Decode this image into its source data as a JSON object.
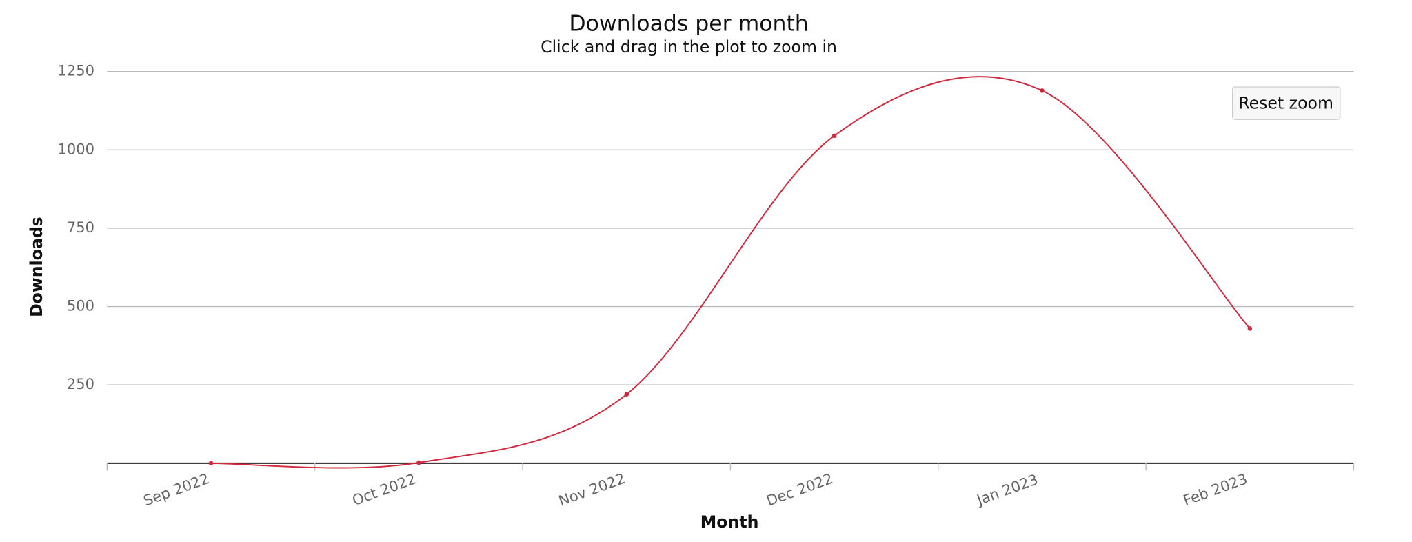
{
  "chart_data": {
    "type": "line",
    "title": "Downloads per month",
    "subtitle": "Click and drag in the plot to zoom in",
    "x_label": "Month",
    "y_label": "Downloads",
    "categories": [
      "Sep 2022",
      "Oct 2022",
      "Nov 2022",
      "Dec 2022",
      "Jan 2023",
      "Feb 2023"
    ],
    "series": [
      {
        "name": "Downloads",
        "color": "#d0283c",
        "values": [
          0,
          2,
          220,
          1045,
          1189,
          430
        ]
      }
    ],
    "ylim": [
      0,
      1250
    ],
    "yticks": [
      250,
      500,
      750,
      1000,
      1250
    ],
    "grid": true,
    "smooth": true,
    "button": "Reset zoom"
  }
}
